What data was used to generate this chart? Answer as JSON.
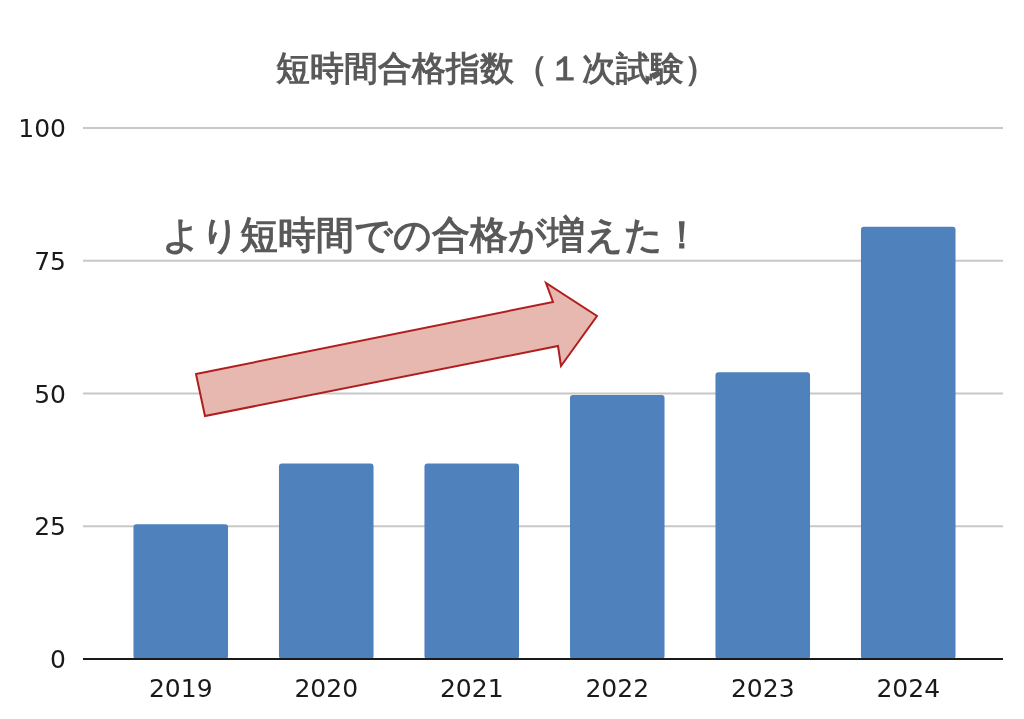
{
  "chart_data": {
    "type": "bar",
    "title": "短時間合格指数（１次試験）",
    "categories": [
      "2019",
      "2020",
      "2021",
      "2022",
      "2023",
      "2024"
    ],
    "values": [
      25.4,
      36.8,
      36.8,
      49.7,
      54.0,
      81.4
    ],
    "color": "#4f81bd",
    "ylim": [
      0,
      100
    ],
    "yticks": [
      0,
      25,
      50,
      75,
      100
    ],
    "grid": "y",
    "annotations": [
      "より短時間での合格が増えた！"
    ]
  }
}
